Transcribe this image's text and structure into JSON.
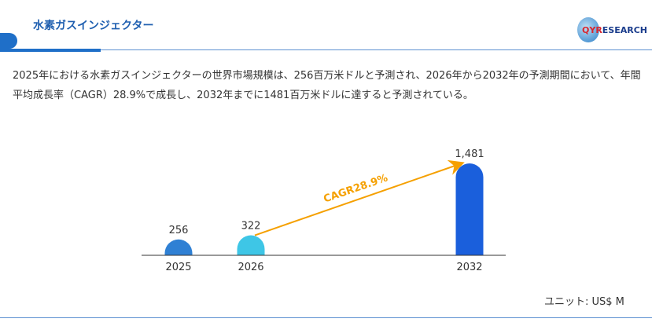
{
  "header": {
    "title": "水素ガスインジェクター",
    "logo_text": "QYRESEARCH"
  },
  "description": "2025年における水素ガスインジェクターの世界市場規模は、256百万米ドルと予測され、2026年から2032年の予測期間において、年間平均成長率（CAGR）28.9%で成長し、2032年までに1481百万米ドルに達すると予測されている。",
  "chart_data": {
    "type": "bar",
    "categories": [
      "2025",
      "2026",
      "2032"
    ],
    "values": [
      256,
      322,
      1481
    ],
    "value_labels": [
      "256",
      "322",
      "1,481"
    ],
    "colors": [
      "#2f80d4",
      "#3ec6e6",
      "#1a5fdc"
    ],
    "annotation": {
      "text": "CAGR28.9%",
      "from": "2026",
      "to": "2032",
      "color": "#f5a000"
    },
    "ylim": [
      0,
      1481
    ],
    "grid": false,
    "unit": "ユニット: US$ M"
  }
}
